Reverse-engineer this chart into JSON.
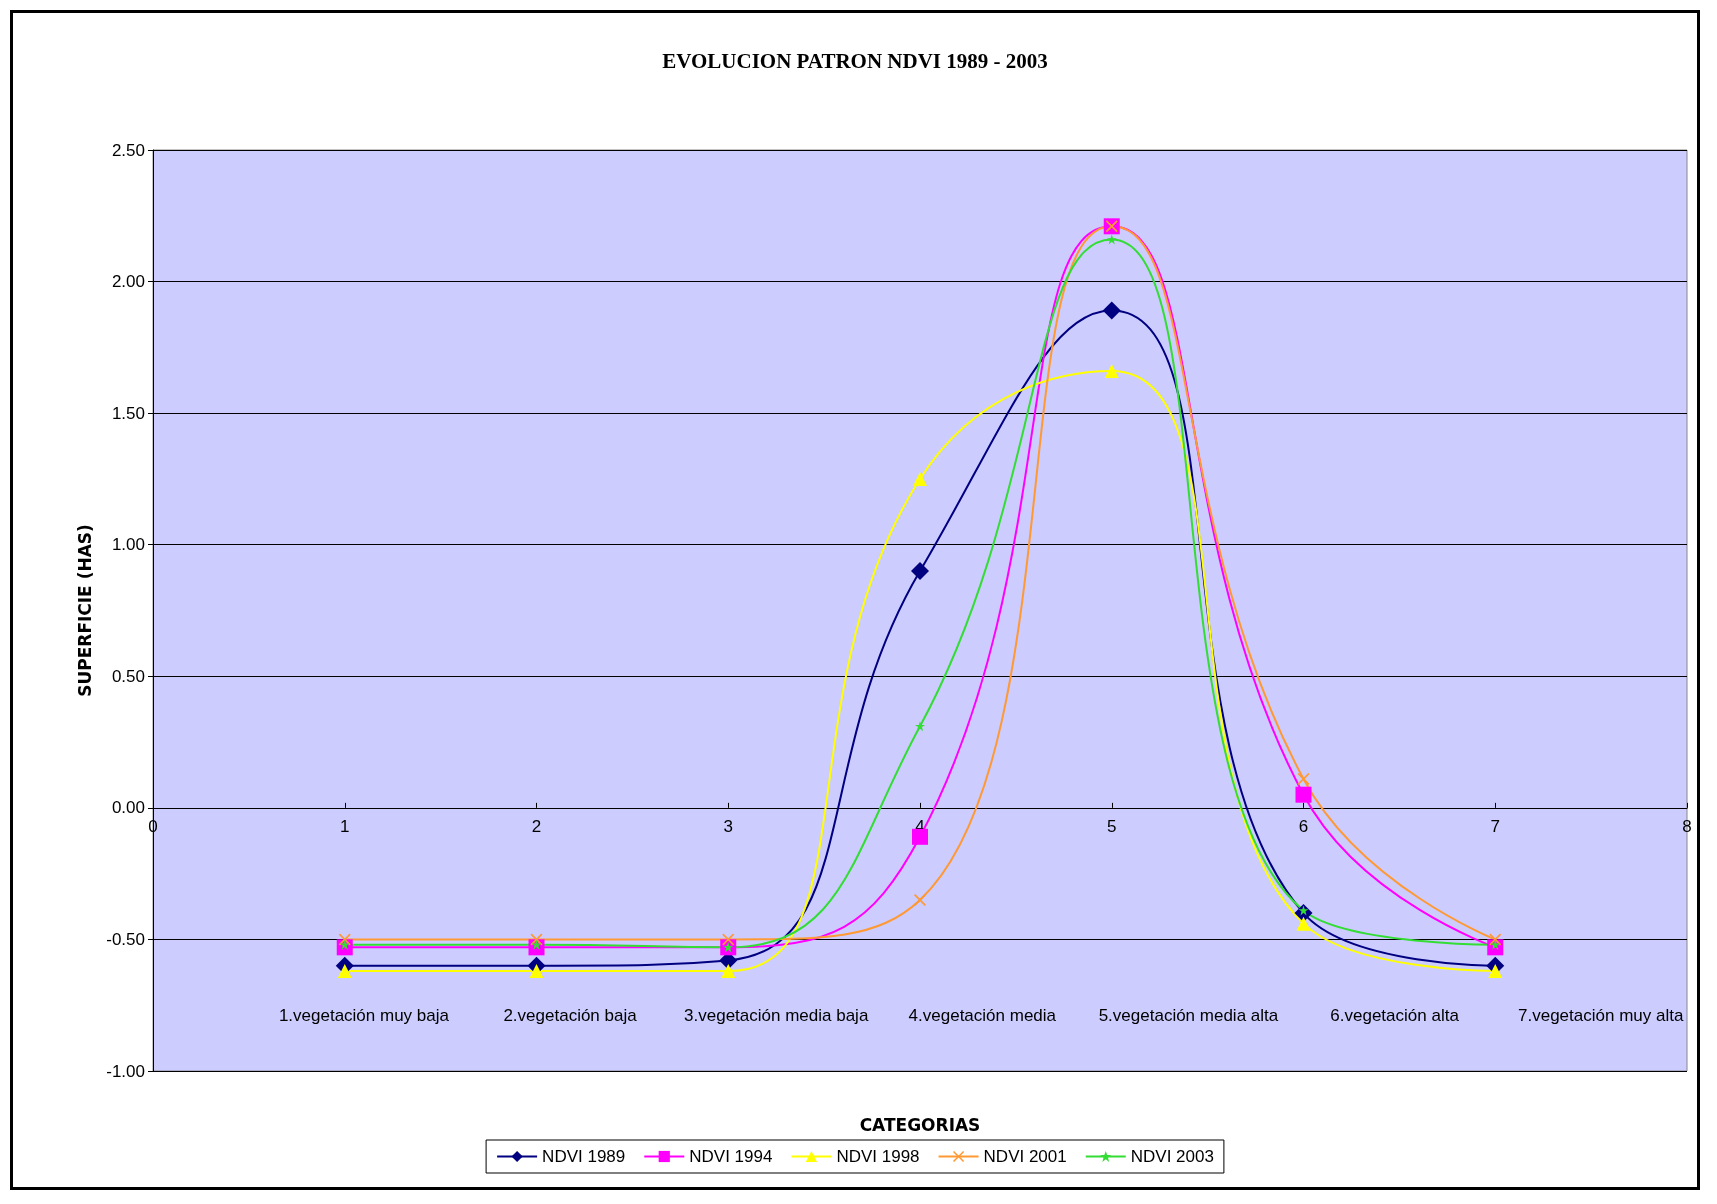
{
  "chart_data": {
    "type": "line",
    "title": "EVOLUCION PATRON NDVI 1989 - 2003",
    "xlabel": "CATEGORIAS",
    "ylabel": "SUPERFICIE (HAS)",
    "x": [
      1,
      2,
      3,
      4,
      5,
      6,
      7
    ],
    "series": [
      {
        "name": "NDVI 1989",
        "color": "#000080",
        "marker": "diamond",
        "values": [
          -0.6,
          -0.6,
          -0.58,
          0.9,
          1.89,
          -0.4,
          -0.6
        ]
      },
      {
        "name": "NDVI 1994",
        "color": "#ff00ff",
        "marker": "square",
        "values": [
          -0.53,
          -0.53,
          -0.53,
          -0.11,
          2.21,
          0.05,
          -0.53
        ]
      },
      {
        "name": "NDVI 1998",
        "color": "#ffff00",
        "marker": "triangle",
        "values": [
          -0.62,
          -0.62,
          -0.62,
          1.25,
          1.66,
          -0.44,
          -0.62
        ]
      },
      {
        "name": "NDVI 2001",
        "color": "#ff9933",
        "marker": "cross",
        "values": [
          -0.5,
          -0.5,
          -0.5,
          -0.35,
          2.21,
          0.11,
          -0.5
        ]
      },
      {
        "name": "NDVI 2003",
        "color": "#33dd33",
        "marker": "star",
        "values": [
          -0.52,
          -0.52,
          -0.53,
          0.31,
          2.16,
          -0.39,
          -0.52
        ]
      }
    ],
    "xlim": [
      0,
      8
    ],
    "xticks": [
      0,
      1,
      2,
      3,
      4,
      5,
      6,
      7,
      8
    ],
    "ylim": [
      -1,
      2.5
    ],
    "yticks": [
      {
        "value": -1,
        "label": "-1.00"
      },
      {
        "value": -0.5,
        "label": "-0.50"
      },
      {
        "value": 0,
        "label": "0.00"
      },
      {
        "value": 0.5,
        "label": "0.50"
      },
      {
        "value": 1,
        "label": "1.00"
      },
      {
        "value": 1.5,
        "label": "1.50"
      },
      {
        "value": 2,
        "label": "2.00"
      },
      {
        "value": 2.5,
        "label": "2.50"
      }
    ],
    "annotations": [
      "1.vegetación muy baja",
      "2.vegetación baja",
      "3.vegetación media baja",
      "4.vegetación media",
      "5.vegetación media alta",
      "6.vegetación alta",
      "7.vegetación muy alta"
    ],
    "grid": "y",
    "legend": "bottom",
    "line_style": "solid"
  }
}
